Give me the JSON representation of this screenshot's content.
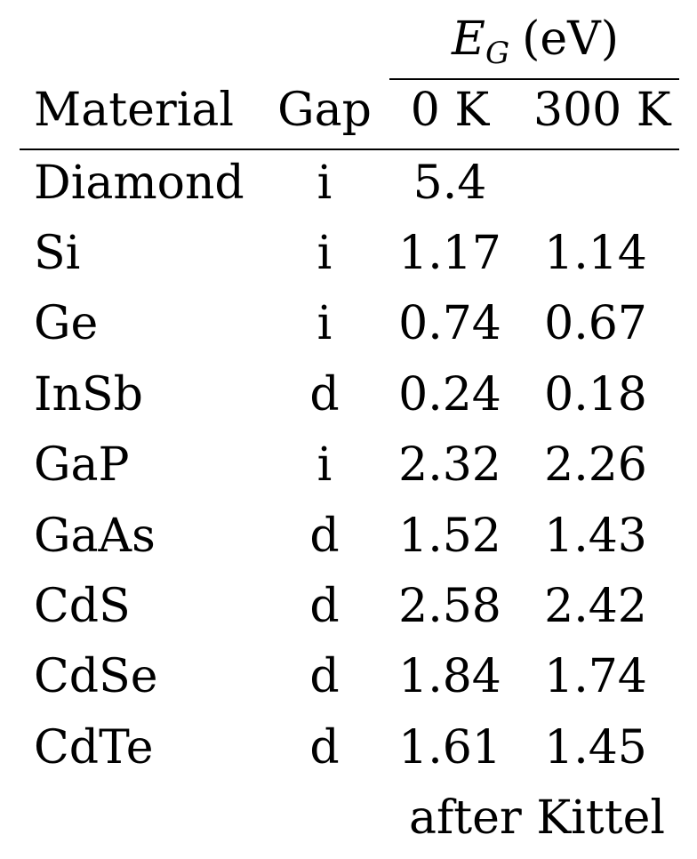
{
  "table": {
    "group_header": {
      "symbol": "E",
      "subscript": "G",
      "unit": "(eV)"
    },
    "columns": [
      "Material",
      "Gap",
      "0 K",
      "300 K"
    ],
    "rows": [
      {
        "material": "Diamond",
        "gap": "i",
        "k0": "5.4",
        "k300": ""
      },
      {
        "material": "Si",
        "gap": "i",
        "k0": "1.17",
        "k300": "1.14"
      },
      {
        "material": "Ge",
        "gap": "i",
        "k0": "0.74",
        "k300": "0.67"
      },
      {
        "material": "InSb",
        "gap": "d",
        "k0": "0.24",
        "k300": "0.18"
      },
      {
        "material": "GaP",
        "gap": "i",
        "k0": "2.32",
        "k300": "2.26"
      },
      {
        "material": "GaAs",
        "gap": "d",
        "k0": "1.52",
        "k300": "1.43"
      },
      {
        "material": "CdS",
        "gap": "d",
        "k0": "2.58",
        "k300": "2.42"
      },
      {
        "material": "CdSe",
        "gap": "d",
        "k0": "1.84",
        "k300": "1.74"
      },
      {
        "material": "CdTe",
        "gap": "d",
        "k0": "1.61",
        "k300": "1.45"
      }
    ],
    "source": "after Kittel"
  }
}
